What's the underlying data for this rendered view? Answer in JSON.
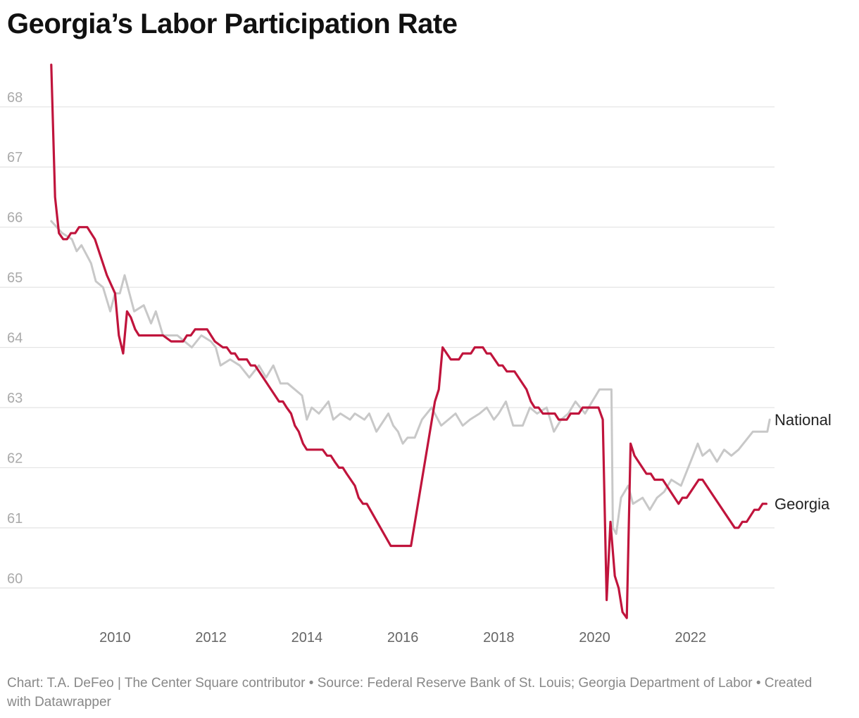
{
  "title": "Georgia’s Labor Participation Rate",
  "footer": {
    "text": "Chart: T.A. DeFeo | The Center Square contributor • Source: Federal Reserve Bank of St. Louis; Georgia Department of Labor • Created with Datawrapper"
  },
  "chart_data": {
    "type": "line",
    "title": "Georgia’s Labor Participation Rate",
    "xlabel": "",
    "ylabel": "",
    "xlim": [
      2008.6,
      2023.75
    ],
    "ylim": [
      59.5,
      68.7
    ],
    "yticks": [
      60,
      61,
      62,
      63,
      64,
      65,
      66,
      67,
      68
    ],
    "xticks": [
      2010,
      2012,
      2014,
      2016,
      2018,
      2020,
      2022
    ],
    "xtick_labels": [
      "2010",
      "2012",
      "2014",
      "2016",
      "2018",
      "2020",
      "2022"
    ],
    "grid": true,
    "colors": {
      "National": "#c8c8c8",
      "Georgia": "#c0143c"
    },
    "series": [
      {
        "name": "National",
        "label": "National",
        "points": [
          [
            2008.67,
            66.1
          ],
          [
            2008.9,
            65.9
          ],
          [
            2009.1,
            65.8
          ],
          [
            2009.2,
            65.6
          ],
          [
            2009.3,
            65.7
          ],
          [
            2009.5,
            65.4
          ],
          [
            2009.6,
            65.1
          ],
          [
            2009.75,
            65.0
          ],
          [
            2009.9,
            64.6
          ],
          [
            2010.0,
            64.9
          ],
          [
            2010.1,
            64.9
          ],
          [
            2010.2,
            65.2
          ],
          [
            2010.4,
            64.6
          ],
          [
            2010.6,
            64.7
          ],
          [
            2010.75,
            64.4
          ],
          [
            2010.85,
            64.6
          ],
          [
            2011.0,
            64.2
          ],
          [
            2011.3,
            64.2
          ],
          [
            2011.6,
            64.0
          ],
          [
            2011.8,
            64.2
          ],
          [
            2012.0,
            64.1
          ],
          [
            2012.1,
            64.0
          ],
          [
            2012.2,
            63.7
          ],
          [
            2012.4,
            63.8
          ],
          [
            2012.6,
            63.7
          ],
          [
            2012.8,
            63.5
          ],
          [
            2013.0,
            63.7
          ],
          [
            2013.15,
            63.5
          ],
          [
            2013.3,
            63.7
          ],
          [
            2013.45,
            63.4
          ],
          [
            2013.6,
            63.4
          ],
          [
            2013.75,
            63.3
          ],
          [
            2013.9,
            63.2
          ],
          [
            2014.0,
            62.8
          ],
          [
            2014.1,
            63.0
          ],
          [
            2014.25,
            62.9
          ],
          [
            2014.45,
            63.1
          ],
          [
            2014.55,
            62.8
          ],
          [
            2014.7,
            62.9
          ],
          [
            2014.9,
            62.8
          ],
          [
            2015.0,
            62.9
          ],
          [
            2015.2,
            62.8
          ],
          [
            2015.3,
            62.9
          ],
          [
            2015.45,
            62.6
          ],
          [
            2015.7,
            62.9
          ],
          [
            2015.8,
            62.7
          ],
          [
            2015.9,
            62.6
          ],
          [
            2016.0,
            62.4
          ],
          [
            2016.1,
            62.5
          ],
          [
            2016.25,
            62.5
          ],
          [
            2016.4,
            62.8
          ],
          [
            2016.6,
            63.0
          ],
          [
            2016.8,
            62.7
          ],
          [
            2016.95,
            62.8
          ],
          [
            2017.1,
            62.9
          ],
          [
            2017.25,
            62.7
          ],
          [
            2017.4,
            62.8
          ],
          [
            2017.6,
            62.9
          ],
          [
            2017.75,
            63.0
          ],
          [
            2017.9,
            62.8
          ],
          [
            2018.0,
            62.9
          ],
          [
            2018.15,
            63.1
          ],
          [
            2018.3,
            62.7
          ],
          [
            2018.5,
            62.7
          ],
          [
            2018.65,
            63.0
          ],
          [
            2018.8,
            62.9
          ],
          [
            2019.0,
            63.0
          ],
          [
            2019.15,
            62.6
          ],
          [
            2019.3,
            62.8
          ],
          [
            2019.45,
            62.9
          ],
          [
            2019.6,
            63.1
          ],
          [
            2019.8,
            62.9
          ],
          [
            2019.95,
            63.1
          ],
          [
            2020.1,
            63.3
          ],
          [
            2020.35,
            63.3
          ],
          [
            2020.38,
            61.0
          ],
          [
            2020.45,
            60.9
          ],
          [
            2020.55,
            61.5
          ],
          [
            2020.7,
            61.7
          ],
          [
            2020.8,
            61.4
          ],
          [
            2021.0,
            61.5
          ],
          [
            2021.15,
            61.3
          ],
          [
            2021.3,
            61.5
          ],
          [
            2021.45,
            61.6
          ],
          [
            2021.6,
            61.8
          ],
          [
            2021.8,
            61.7
          ],
          [
            2022.0,
            62.1
          ],
          [
            2022.15,
            62.4
          ],
          [
            2022.25,
            62.2
          ],
          [
            2022.4,
            62.3
          ],
          [
            2022.55,
            62.1
          ],
          [
            2022.7,
            62.3
          ],
          [
            2022.85,
            62.2
          ],
          [
            2023.0,
            62.3
          ],
          [
            2023.3,
            62.6
          ],
          [
            2023.6,
            62.6
          ],
          [
            2023.65,
            62.8
          ]
        ]
      },
      {
        "name": "Georgia",
        "label": "Georgia",
        "points": [
          [
            2008.67,
            68.7
          ],
          [
            2008.75,
            66.5
          ],
          [
            2008.83,
            65.9
          ],
          [
            2008.92,
            65.8
          ],
          [
            2009.0,
            65.8
          ],
          [
            2009.08,
            65.9
          ],
          [
            2009.17,
            65.9
          ],
          [
            2009.25,
            66.0
          ],
          [
            2009.42,
            66.0
          ],
          [
            2009.58,
            65.8
          ],
          [
            2009.83,
            65.2
          ],
          [
            2010.0,
            64.9
          ],
          [
            2010.08,
            64.2
          ],
          [
            2010.17,
            63.9
          ],
          [
            2010.25,
            64.6
          ],
          [
            2010.33,
            64.5
          ],
          [
            2010.42,
            64.3
          ],
          [
            2010.5,
            64.2
          ],
          [
            2010.58,
            64.2
          ],
          [
            2011.0,
            64.2
          ],
          [
            2011.17,
            64.1
          ],
          [
            2011.42,
            64.1
          ],
          [
            2011.5,
            64.2
          ],
          [
            2011.58,
            64.2
          ],
          [
            2011.67,
            64.3
          ],
          [
            2011.92,
            64.3
          ],
          [
            2012.08,
            64.1
          ],
          [
            2012.25,
            64.0
          ],
          [
            2012.33,
            64.0
          ],
          [
            2012.42,
            63.9
          ],
          [
            2012.5,
            63.9
          ],
          [
            2012.58,
            63.8
          ],
          [
            2012.75,
            63.8
          ],
          [
            2012.83,
            63.7
          ],
          [
            2012.92,
            63.7
          ],
          [
            2013.17,
            63.4
          ],
          [
            2013.42,
            63.1
          ],
          [
            2013.5,
            63.1
          ],
          [
            2013.58,
            63.0
          ],
          [
            2013.67,
            62.9
          ],
          [
            2013.75,
            62.7
          ],
          [
            2013.83,
            62.6
          ],
          [
            2013.92,
            62.4
          ],
          [
            2014.0,
            62.3
          ],
          [
            2014.33,
            62.3
          ],
          [
            2014.42,
            62.2
          ],
          [
            2014.5,
            62.2
          ],
          [
            2014.58,
            62.1
          ],
          [
            2014.67,
            62.0
          ],
          [
            2014.75,
            62.0
          ],
          [
            2014.83,
            61.9
          ],
          [
            2015.0,
            61.7
          ],
          [
            2015.08,
            61.5
          ],
          [
            2015.17,
            61.4
          ],
          [
            2015.25,
            61.4
          ],
          [
            2015.75,
            60.7
          ],
          [
            2016.17,
            60.7
          ],
          [
            2016.67,
            63.1
          ],
          [
            2016.75,
            63.3
          ],
          [
            2016.83,
            64.0
          ],
          [
            2017.0,
            63.8
          ],
          [
            2017.17,
            63.8
          ],
          [
            2017.25,
            63.9
          ],
          [
            2017.42,
            63.9
          ],
          [
            2017.5,
            64.0
          ],
          [
            2017.67,
            64.0
          ],
          [
            2017.75,
            63.9
          ],
          [
            2017.83,
            63.9
          ],
          [
            2018.0,
            63.7
          ],
          [
            2018.08,
            63.7
          ],
          [
            2018.17,
            63.6
          ],
          [
            2018.33,
            63.6
          ],
          [
            2018.58,
            63.3
          ],
          [
            2018.67,
            63.1
          ],
          [
            2018.75,
            63.0
          ],
          [
            2018.83,
            63.0
          ],
          [
            2018.92,
            62.9
          ],
          [
            2019.17,
            62.9
          ],
          [
            2019.25,
            62.8
          ],
          [
            2019.42,
            62.8
          ],
          [
            2019.5,
            62.9
          ],
          [
            2019.67,
            62.9
          ],
          [
            2019.75,
            63.0
          ],
          [
            2020.08,
            63.0
          ],
          [
            2020.17,
            62.8
          ],
          [
            2020.25,
            59.8
          ],
          [
            2020.33,
            61.1
          ],
          [
            2020.42,
            60.2
          ],
          [
            2020.5,
            60.0
          ],
          [
            2020.58,
            59.6
          ],
          [
            2020.67,
            59.5
          ],
          [
            2020.75,
            62.4
          ],
          [
            2020.83,
            62.2
          ],
          [
            2021.08,
            61.9
          ],
          [
            2021.17,
            61.9
          ],
          [
            2021.25,
            61.8
          ],
          [
            2021.42,
            61.8
          ],
          [
            2021.75,
            61.4
          ],
          [
            2021.83,
            61.5
          ],
          [
            2021.92,
            61.5
          ],
          [
            2022.17,
            61.8
          ],
          [
            2022.25,
            61.8
          ],
          [
            2022.92,
            61.0
          ],
          [
            2023.0,
            61.0
          ],
          [
            2023.08,
            61.1
          ],
          [
            2023.17,
            61.1
          ],
          [
            2023.33,
            61.3
          ],
          [
            2023.42,
            61.3
          ],
          [
            2023.5,
            61.4
          ],
          [
            2023.58,
            61.4
          ]
        ]
      }
    ]
  }
}
